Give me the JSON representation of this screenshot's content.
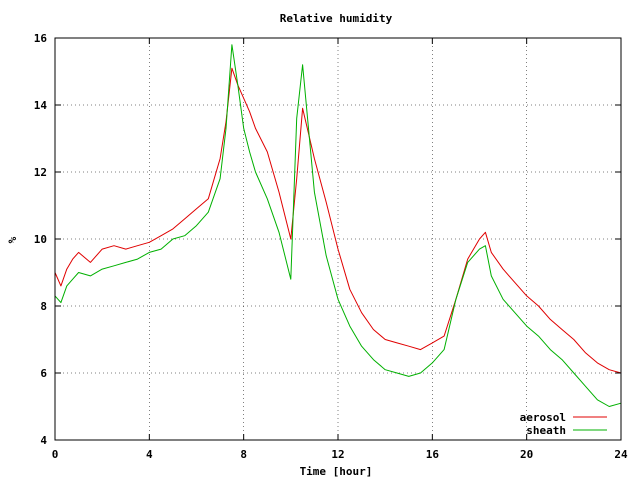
{
  "chart_data": {
    "type": "line",
    "title": "Relative humidity",
    "xlabel": "Time [hour]",
    "ylabel": "%",
    "xlim": [
      0,
      24
    ],
    "ylim": [
      4,
      16
    ],
    "x_ticks": [
      0,
      4,
      8,
      12,
      16,
      20,
      24
    ],
    "y_ticks": [
      4,
      6,
      8,
      10,
      12,
      14,
      16
    ],
    "grid": true,
    "legend_position": "bottom-right",
    "series": [
      {
        "name": "aerosol",
        "color": "#e00000",
        "x": [
          0,
          0.25,
          0.5,
          0.75,
          1,
          1.5,
          2,
          2.5,
          3,
          3.5,
          4,
          4.5,
          5,
          5.5,
          6,
          6.5,
          7,
          7.25,
          7.5,
          7.75,
          8,
          8.25,
          8.5,
          9,
          9.5,
          10,
          10.25,
          10.5,
          11,
          11.5,
          12,
          12.5,
          13,
          13.5,
          14,
          14.5,
          15,
          15.5,
          16,
          16.5,
          17,
          17.5,
          18,
          18.25,
          18.5,
          19,
          19.5,
          20,
          20.5,
          21,
          21.5,
          22,
          22.5,
          23,
          23.5,
          24
        ],
        "y": [
          9,
          8.6,
          9.1,
          9.4,
          9.6,
          9.3,
          9.7,
          9.8,
          9.7,
          9.8,
          9.9,
          10.1,
          10.3,
          10.6,
          10.9,
          11.2,
          12.4,
          13.5,
          15.1,
          14.6,
          14.2,
          13.8,
          13.3,
          12.6,
          11.4,
          10,
          11.8,
          13.9,
          12.4,
          11.1,
          9.7,
          8.5,
          7.8,
          7.3,
          7,
          6.9,
          6.8,
          6.7,
          6.9,
          7.1,
          8.2,
          9.4,
          10,
          10.2,
          9.6,
          9.1,
          8.7,
          8.3,
          8,
          7.6,
          7.3,
          7,
          6.6,
          6.3,
          6.1,
          6
        ]
      },
      {
        "name": "sheath",
        "color": "#00b000",
        "x": [
          0,
          0.25,
          0.5,
          0.75,
          1,
          1.5,
          2,
          2.5,
          3,
          3.5,
          4,
          4.5,
          5,
          5.5,
          6,
          6.5,
          7,
          7.25,
          7.5,
          7.75,
          8,
          8.25,
          8.5,
          9,
          9.5,
          10,
          10.25,
          10.5,
          11,
          11.5,
          12,
          12.5,
          13,
          13.5,
          14,
          14.5,
          15,
          15.5,
          16,
          16.5,
          17,
          17.5,
          18,
          18.25,
          18.5,
          19,
          19.5,
          20,
          20.5,
          21,
          21.5,
          22,
          22.5,
          23,
          23.5,
          24
        ],
        "y": [
          8.3,
          8.1,
          8.6,
          8.8,
          9,
          8.9,
          9.1,
          9.2,
          9.3,
          9.4,
          9.6,
          9.7,
          10,
          10.1,
          10.4,
          10.8,
          11.8,
          13.3,
          15.8,
          14.6,
          13.3,
          12.6,
          12,
          11.2,
          10.2,
          8.8,
          13.6,
          15.2,
          11.4,
          9.5,
          8.2,
          7.4,
          6.8,
          6.4,
          6.1,
          6,
          5.9,
          6,
          6.3,
          6.7,
          8.2,
          9.3,
          9.7,
          9.8,
          8.9,
          8.2,
          7.8,
          7.4,
          7.1,
          6.7,
          6.4,
          6,
          5.6,
          5.2,
          5,
          5.1
        ]
      }
    ]
  }
}
